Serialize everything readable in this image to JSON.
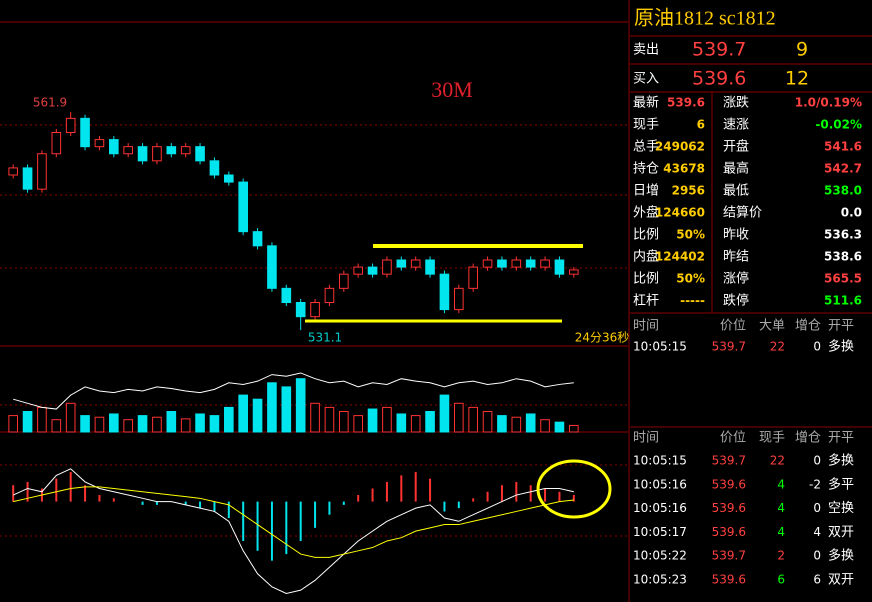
{
  "chart": {
    "period": "30M",
    "high_label": "561.9",
    "low_label": "531.1",
    "countdown": "24分36秒",
    "ylim": [
      529,
      574.6
    ],
    "candles": {
      "open": [
        553,
        554,
        551,
        556,
        559,
        561,
        557,
        558,
        556,
        557,
        555,
        557,
        556,
        557,
        555,
        553,
        552,
        545,
        543,
        537,
        535,
        533,
        535,
        537,
        539,
        540,
        539,
        541,
        540,
        541,
        539,
        534,
        537,
        540,
        541,
        540,
        541,
        540,
        541,
        539
      ],
      "high": [
        554.5,
        554.5,
        556.5,
        559.5,
        561.9,
        561.5,
        558.5,
        558.5,
        557.5,
        557.5,
        557.5,
        557.5,
        557.5,
        557.5,
        555.5,
        553.5,
        552.5,
        545.5,
        543.5,
        537.5,
        535.5,
        535.5,
        537.5,
        539.5,
        540.5,
        540.5,
        541.5,
        541.5,
        541.5,
        541.5,
        539.5,
        537.5,
        540.5,
        541.5,
        541.5,
        541.5,
        541.5,
        541.5,
        541.5,
        540
      ],
      "low": [
        552.5,
        550.5,
        550.5,
        555.5,
        558.5,
        556.5,
        556.5,
        555.5,
        555.5,
        554.5,
        554.5,
        555.5,
        555.5,
        554.5,
        552.5,
        551.5,
        544.5,
        542.5,
        536.5,
        534.5,
        531.1,
        532.5,
        534.5,
        536.5,
        538.5,
        538.5,
        538.5,
        539.5,
        539.5,
        538.5,
        533.5,
        533.5,
        536.5,
        539.5,
        539.5,
        539.5,
        539.5,
        539.5,
        538.5,
        538.5
      ],
      "close": [
        554,
        551,
        556,
        559,
        561,
        557,
        558,
        556,
        557,
        555,
        557,
        556,
        557,
        555,
        553,
        552,
        545,
        543,
        537,
        535,
        533,
        535,
        537,
        539,
        540,
        539,
        541,
        540,
        541,
        539,
        534,
        537,
        540,
        541,
        540,
        541,
        540,
        541,
        539,
        539.6
      ]
    },
    "volume_ylim": [
      0,
      100
    ],
    "volume": [
      20,
      25,
      30,
      15,
      35,
      20,
      18,
      22,
      15,
      20,
      18,
      25,
      16,
      22,
      20,
      30,
      45,
      40,
      60,
      55,
      65,
      35,
      30,
      25,
      20,
      28,
      30,
      22,
      20,
      25,
      45,
      35,
      30,
      25,
      20,
      18,
      22,
      15,
      12,
      8
    ],
    "open_interest": [
      40,
      35,
      30,
      28,
      45,
      55,
      50,
      48,
      52,
      50,
      55,
      53,
      50,
      48,
      52,
      60,
      58,
      62,
      70,
      68,
      72,
      65,
      60,
      62,
      55,
      60,
      58,
      65,
      62,
      60,
      55,
      60,
      62,
      58,
      60,
      65,
      62,
      55,
      58,
      60
    ],
    "macd": {
      "ylim": [
        -3,
        2
      ],
      "hist": [
        0.5,
        0.6,
        0.4,
        0.7,
        0.9,
        0.5,
        0.2,
        0.1,
        0,
        -0.1,
        -0.1,
        0,
        -0.1,
        -0.2,
        -0.3,
        -0.5,
        -1.2,
        -1.5,
        -1.8,
        -1.6,
        -1.2,
        -0.8,
        -0.4,
        -0.1,
        0.2,
        0.4,
        0.6,
        0.8,
        0.9,
        0.7,
        -0.3,
        -0.2,
        0.1,
        0.3,
        0.5,
        0.6,
        0.5,
        0.4,
        0.3,
        0.2
      ],
      "dif": [
        0.2,
        0.4,
        0.3,
        0.8,
        1.0,
        0.6,
        0.4,
        0.3,
        0.2,
        0.1,
        0,
        0,
        -0.1,
        -0.2,
        -0.3,
        -0.6,
        -1.5,
        -2.2,
        -2.6,
        -2.8,
        -2.7,
        -2.4,
        -2.0,
        -1.6,
        -1.2,
        -0.9,
        -0.6,
        -0.4,
        -0.2,
        -0.1,
        -0.5,
        -0.6,
        -0.4,
        -0.2,
        0,
        0.2,
        0.3,
        0.4,
        0.4,
        0.3
      ],
      "dea": [
        0,
        0.1,
        0.2,
        0.3,
        0.4,
        0.45,
        0.45,
        0.4,
        0.35,
        0.3,
        0.25,
        0.2,
        0.15,
        0.1,
        0,
        -0.1,
        -0.4,
        -0.7,
        -1.0,
        -1.3,
        -1.6,
        -1.7,
        -1.7,
        -1.6,
        -1.5,
        -1.4,
        -1.2,
        -1.1,
        -0.9,
        -0.8,
        -0.7,
        -0.7,
        -0.6,
        -0.5,
        -0.4,
        -0.3,
        -0.2,
        -0.1,
        0,
        0.05
      ]
    }
  },
  "quote": {
    "title": "原油1812  sc1812",
    "ask": {
      "label": "卖出",
      "price": "539.7",
      "size": "9"
    },
    "bid": {
      "label": "买入",
      "price": "539.6",
      "size": "12"
    },
    "rows": [
      [
        "最新",
        "539.6",
        "涨跌",
        "1.0/0.19%"
      ],
      [
        "现手",
        "6",
        "速涨",
        "-0.02%"
      ],
      [
        "总手",
        "249062",
        "开盘",
        "541.6"
      ],
      [
        "持仓",
        "43678",
        "最高",
        "542.7"
      ],
      [
        "日增",
        "2956",
        "最低",
        "538.0"
      ],
      [
        "外盘",
        "124660",
        "结算价",
        "0.0"
      ],
      [
        "比例",
        "50%",
        "昨收",
        "536.3"
      ],
      [
        "内盘",
        "124402",
        "昨结",
        "538.6"
      ],
      [
        "比例",
        "50%",
        "涨停",
        "565.5"
      ],
      [
        "杠杆",
        "-----",
        "跌停",
        "511.6"
      ]
    ]
  },
  "ticks1": {
    "headers": [
      "时间",
      "价位",
      "大单",
      "增仓",
      "开平"
    ],
    "rows": [
      [
        "10:05:15",
        "539.7",
        "22",
        "0",
        "多换"
      ]
    ]
  },
  "ticks2": {
    "headers": [
      "时间",
      "价位",
      "现手",
      "增仓",
      "开平"
    ],
    "rows": [
      [
        "10:05:15",
        "539.7",
        "22",
        "0",
        "多换"
      ],
      [
        "10:05:16",
        "539.6",
        "4",
        "-2",
        "多平"
      ],
      [
        "10:05:16",
        "539.6",
        "4",
        "0",
        "空换"
      ],
      [
        "10:05:17",
        "539.6",
        "4",
        "4",
        "双开"
      ],
      [
        "10:05:22",
        "539.7",
        "2",
        "0",
        "多换"
      ],
      [
        "10:05:23",
        "539.6",
        "6",
        "6",
        "双开"
      ]
    ]
  }
}
